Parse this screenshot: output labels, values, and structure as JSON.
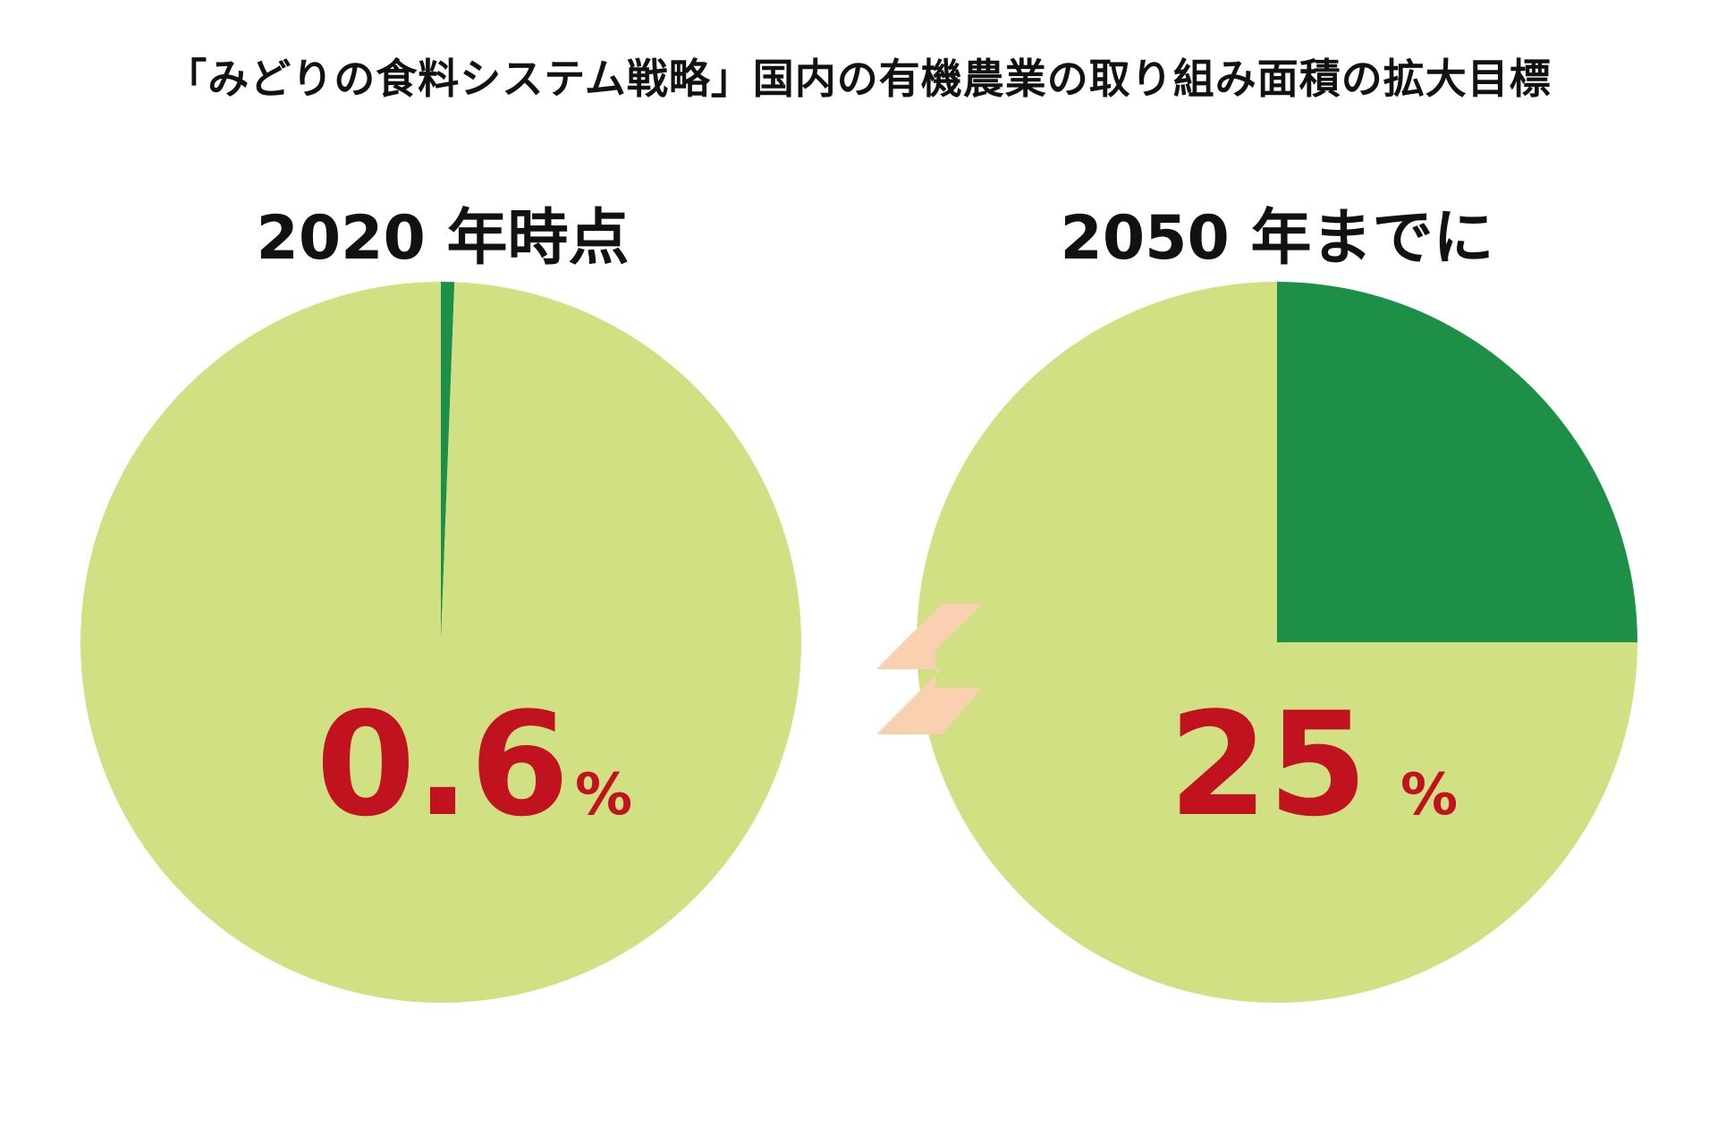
{
  "title": "「みどりの食料システム戦略」国内の有機農業の取り組み面積の拡大目標",
  "colors": {
    "organic": "#1e8f46",
    "other": "#d0e082",
    "value_text": "#c0121f",
    "arrow": "#f9d0b0",
    "title_text": "#111111"
  },
  "icons": {
    "arrow": "right-arrow-icon"
  },
  "chart_data": [
    {
      "type": "pie",
      "title": "2020 年時点",
      "slices": [
        {
          "value": 0.6,
          "color": "#1e8f46"
        },
        {
          "value": 99.4,
          "color": "#d0e082"
        }
      ],
      "value_label": "0.6",
      "unit_label": "%"
    },
    {
      "type": "pie",
      "title": "2050 年までに",
      "slices": [
        {
          "value": 25,
          "color": "#1e8f46"
        },
        {
          "value": 75,
          "color": "#d0e082"
        }
      ],
      "value_label": "25",
      "unit_label": "%"
    }
  ]
}
